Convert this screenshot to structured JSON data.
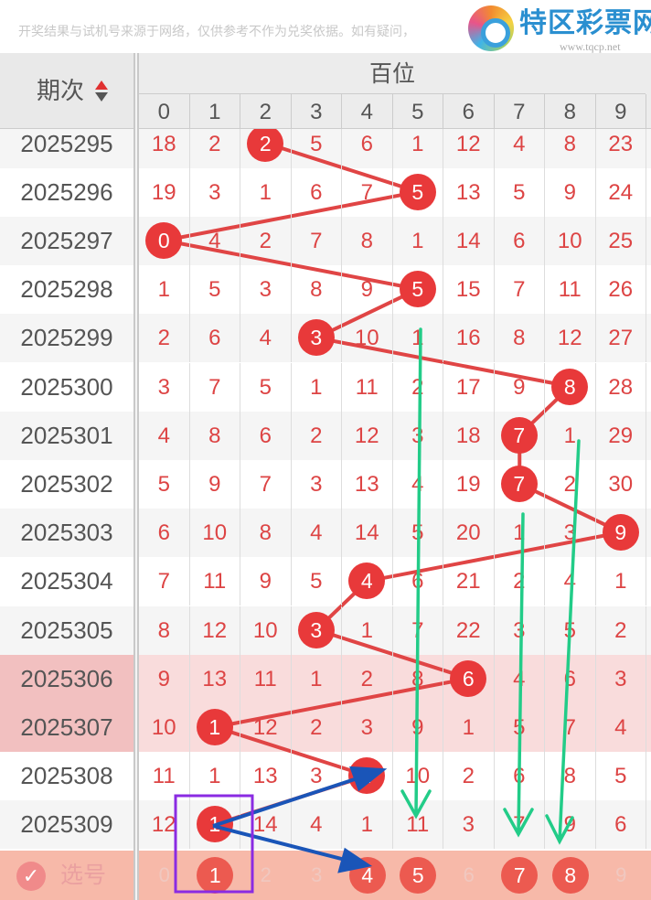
{
  "notice": "开奖结果与试机号来源于网络，仅供参考不作为兑奖依据。如有疑问，",
  "logo": {
    "name": "特区彩票网",
    "url": "www.tqcp.net"
  },
  "header": {
    "issue_label": "期次",
    "section_title": "百位",
    "digits": [
      "0",
      "1",
      "2",
      "3",
      "4",
      "5",
      "6",
      "7",
      "8",
      "9"
    ]
  },
  "colors": {
    "ball": "#e8393a",
    "line": "#e04545",
    "highlight_row": "#f9dcdc",
    "green_arrow": "#22cc88",
    "blue_arrow": "#1a55b8",
    "select_box": "#8a2be2"
  },
  "rows": [
    {
      "issue": "2025295",
      "cells": [
        "18",
        "2",
        "2",
        "5",
        "6",
        "1",
        "12",
        "4",
        "8",
        "23"
      ],
      "hit": 2
    },
    {
      "issue": "2025296",
      "cells": [
        "19",
        "3",
        "1",
        "6",
        "7",
        "5",
        "13",
        "5",
        "9",
        "24"
      ],
      "hit": 5
    },
    {
      "issue": "2025297",
      "cells": [
        "0",
        "4",
        "2",
        "7",
        "8",
        "1",
        "14",
        "6",
        "10",
        "25"
      ],
      "hit": 0
    },
    {
      "issue": "2025298",
      "cells": [
        "1",
        "5",
        "3",
        "8",
        "9",
        "5",
        "15",
        "7",
        "11",
        "26"
      ],
      "hit": 5
    },
    {
      "issue": "2025299",
      "cells": [
        "2",
        "6",
        "4",
        "3",
        "10",
        "1",
        "16",
        "8",
        "12",
        "27"
      ],
      "hit": 3
    },
    {
      "issue": "2025300",
      "cells": [
        "3",
        "7",
        "5",
        "1",
        "11",
        "2",
        "17",
        "9",
        "8",
        "28"
      ],
      "hit": 8
    },
    {
      "issue": "2025301",
      "cells": [
        "4",
        "8",
        "6",
        "2",
        "12",
        "3",
        "18",
        "7",
        "1",
        "29"
      ],
      "hit": 7
    },
    {
      "issue": "2025302",
      "cells": [
        "5",
        "9",
        "7",
        "3",
        "13",
        "4",
        "19",
        "7",
        "2",
        "30"
      ],
      "hit": 7
    },
    {
      "issue": "2025303",
      "cells": [
        "6",
        "10",
        "8",
        "4",
        "14",
        "5",
        "20",
        "1",
        "3",
        "9"
      ],
      "hit": 9
    },
    {
      "issue": "2025304",
      "cells": [
        "7",
        "11",
        "9",
        "5",
        "4",
        "6",
        "21",
        "2",
        "4",
        "1"
      ],
      "hit": 4
    },
    {
      "issue": "2025305",
      "cells": [
        "8",
        "12",
        "10",
        "3",
        "1",
        "7",
        "22",
        "3",
        "5",
        "2"
      ],
      "hit": 3
    },
    {
      "issue": "2025306",
      "cells": [
        "9",
        "13",
        "11",
        "1",
        "2",
        "8",
        "6",
        "4",
        "6",
        "3"
      ],
      "hit": 6,
      "highlight": true
    },
    {
      "issue": "2025307",
      "cells": [
        "10",
        "1",
        "12",
        "2",
        "3",
        "9",
        "1",
        "5",
        "7",
        "4"
      ],
      "hit": 1,
      "highlight": true
    },
    {
      "issue": "2025308",
      "cells": [
        "11",
        "1",
        "13",
        "3",
        "4",
        "10",
        "2",
        "6",
        "8",
        "5"
      ],
      "hit": 4
    },
    {
      "issue": "2025309",
      "cells": [
        "12",
        "1",
        "14",
        "4",
        "1",
        "11",
        "3",
        "7",
        "9",
        "6"
      ],
      "hit": 1
    }
  ],
  "picker": {
    "label": "选号",
    "check_icon": "check-circle-icon",
    "digits": [
      "0",
      "1",
      "2",
      "3",
      "4",
      "5",
      "6",
      "7",
      "8",
      "9"
    ],
    "selected": [
      1,
      4,
      5,
      7,
      8
    ]
  }
}
